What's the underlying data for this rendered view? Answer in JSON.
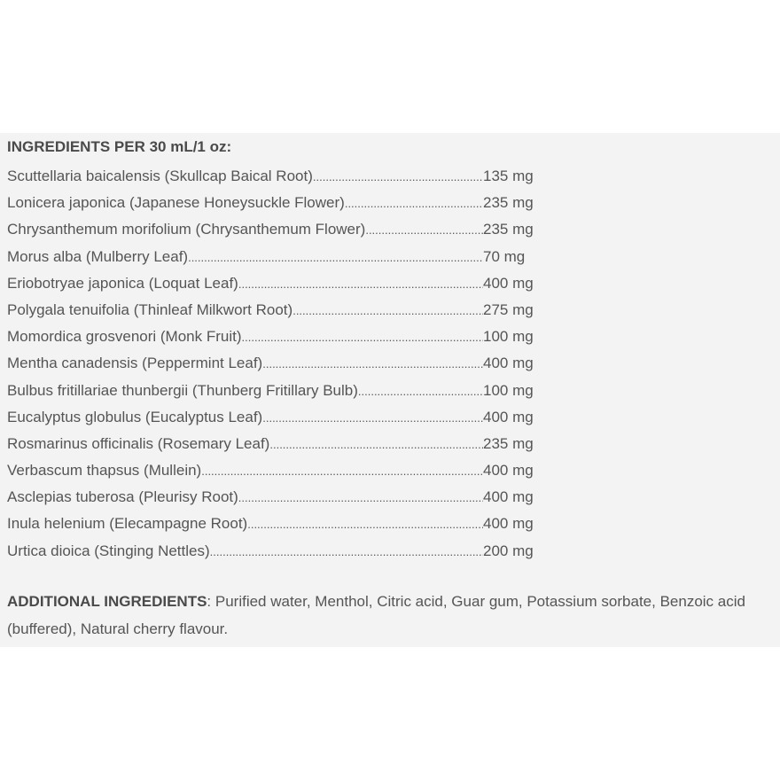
{
  "title": "INGREDIENTS PER 30 mL/1 oz:",
  "ingredients": [
    {
      "name": "Scuttellaria baicalensis (Skullcap Baical Root)",
      "amount": "135 mg"
    },
    {
      "name": "Lonicera japonica (Japanese Honeysuckle Flower)",
      "amount": "235 mg"
    },
    {
      "name": "Chrysanthemum morifolium (Chrysanthemum Flower)",
      "amount": "235 mg"
    },
    {
      "name": "Morus alba (Mulberry Leaf)",
      "amount": "70 mg"
    },
    {
      "name": "Eriobotryae japonica (Loquat Leaf)",
      "amount": "400 mg"
    },
    {
      "name": "Polygala tenuifolia (Thinleaf Milkwort Root)",
      "amount": "275 mg"
    },
    {
      "name": "Momordica grosvenori (Monk Fruit)",
      "amount": "100 mg"
    },
    {
      "name": "Mentha canadensis (Peppermint Leaf)",
      "amount": "400 mg"
    },
    {
      "name": "Bulbus fritillariae thunbergii (Thunberg Fritillary Bulb)",
      "amount": "100 mg"
    },
    {
      "name": "Eucalyptus globulus (Eucalyptus Leaf)",
      "amount": "400 mg"
    },
    {
      "name": "Rosmarinus officinalis (Rosemary Leaf)",
      "amount": "235 mg"
    },
    {
      "name": "Verbascum thapsus (Mullein)",
      "amount": "400 mg"
    },
    {
      "name": "Asclepias tuberosa (Pleurisy Root)",
      "amount": "400 mg"
    },
    {
      "name": "Inula helenium (Elecampagne Root)",
      "amount": "400 mg"
    },
    {
      "name": "Urtica dioica (Stinging Nettles)",
      "amount": "200 mg"
    }
  ],
  "additional": {
    "label": "ADDITIONAL INGREDIENTS",
    "text": ": Purified water, Menthol, Citric acid, Guar gum, Potassium sorbate, Benzoic acid (buffered), Natural cherry flavour."
  },
  "colors": {
    "panel": "#f3f3f3",
    "text": "#555555"
  }
}
